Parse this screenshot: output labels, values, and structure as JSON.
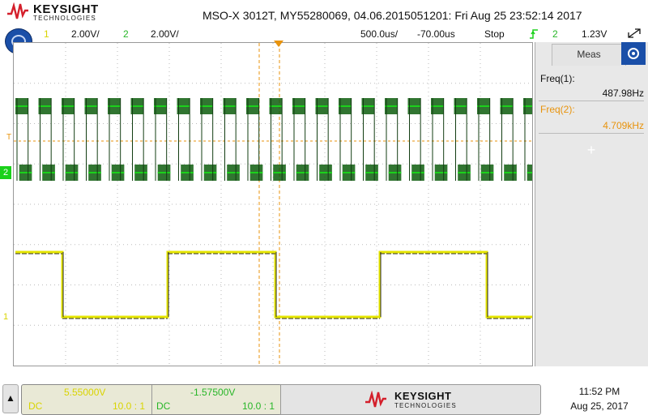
{
  "header": {
    "brand_name": "KEYSIGHT",
    "brand_sub": "TECHNOLOGIES",
    "title": "MSO-X 3012T, MY55280069, 04.06.2015051201: Fri Aug 25 23:52:14 2017"
  },
  "status_bar": {
    "ch1_number": "1",
    "ch1_scale": "2.00V/",
    "ch2_number": "2",
    "ch2_scale": "2.00V/",
    "timebase": "500.0us/",
    "delay": "-70.00us",
    "run_state": "Stop",
    "trigger_source": "2",
    "trigger_level": "1.23V",
    "trigger_slope_icon": "trigger-edge-icon",
    "menu_icon": "main-menu-icon"
  },
  "graticule": {
    "trigger_level_marker": "T",
    "ch2_marker": "2",
    "ch1_marker": "1"
  },
  "measurements": {
    "tab_label": "Meas",
    "items": [
      {
        "label": "Freq(1):",
        "value": "487.98Hz",
        "color": "#111111"
      },
      {
        "label": "Freq(2):",
        "value": "4.709kHz",
        "color": "#e8930c"
      }
    ],
    "add_icon": "plus-icon"
  },
  "bottom": {
    "home_icon": "up-arrow-icon",
    "ch1_offset": "5.55000V",
    "ch1_coupling": "DC",
    "ch1_probe": "10.0 : 1",
    "ch2_offset": "-1.57500V",
    "ch2_coupling": "DC",
    "ch2_probe": "10.0 : 1",
    "brand_name": "KEYSIGHT",
    "brand_sub": "TECHNOLOGIES",
    "time": "11:52 PM",
    "date": "Aug 25, 2017"
  },
  "colors": {
    "ch1": "#e6e600",
    "ch2": "#1bd11b",
    "cursor": "#e8930c",
    "brand_red": "#d41f2b",
    "menu_blue": "#1a4fa8"
  }
}
